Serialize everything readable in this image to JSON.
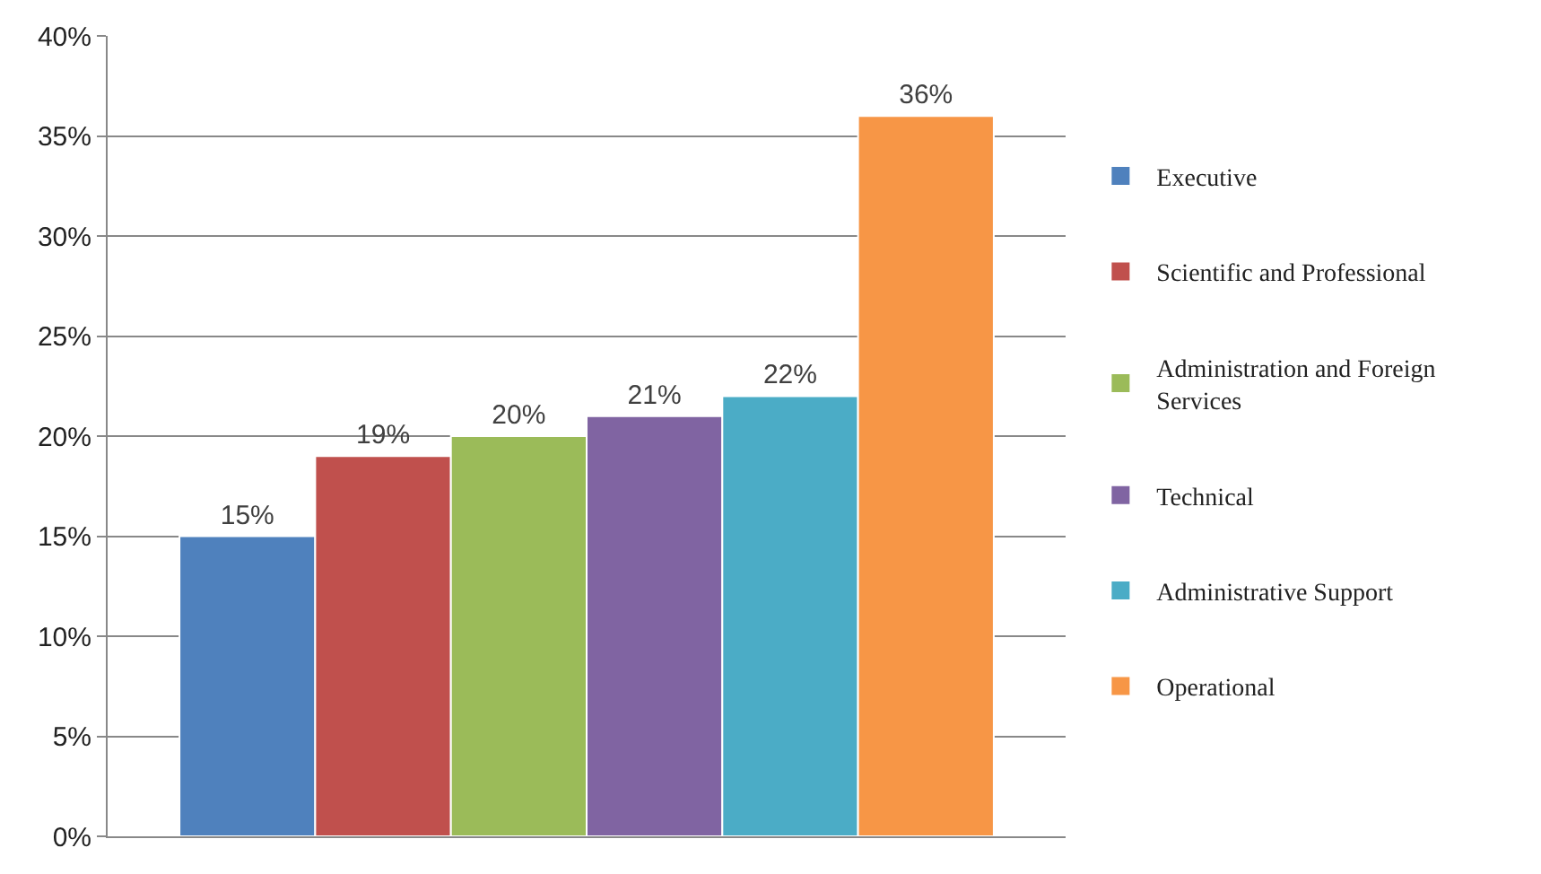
{
  "chart_data": {
    "type": "bar",
    "categories": [
      null
    ],
    "series": [
      {
        "name": "Executive",
        "color": "#4f81bd",
        "values": [
          15
        ],
        "value_labels": [
          "15%"
        ]
      },
      {
        "name": "Scientific and Professional",
        "color": "#c0504d",
        "values": [
          19
        ],
        "value_labels": [
          "19%"
        ]
      },
      {
        "name": "Administration and Foreign Services",
        "color": "#9bbb59",
        "values": [
          20
        ],
        "value_labels": [
          "20%"
        ]
      },
      {
        "name": "Technical",
        "color": "#8064a2",
        "values": [
          21
        ],
        "value_labels": [
          "21%"
        ]
      },
      {
        "name": "Administrative Support",
        "color": "#4bacc6",
        "values": [
          22
        ],
        "value_labels": [
          "22%"
        ]
      },
      {
        "name": "Operational",
        "color": "#f79646",
        "values": [
          36
        ],
        "value_labels": [
          "36%"
        ]
      }
    ],
    "ylim": [
      0,
      40
    ],
    "yticks": [
      {
        "value": 0,
        "label": "0%"
      },
      {
        "value": 5,
        "label": "5%"
      },
      {
        "value": 10,
        "label": "10%"
      },
      {
        "value": 15,
        "label": "15%"
      },
      {
        "value": 20,
        "label": "20%"
      },
      {
        "value": 25,
        "label": "25%"
      },
      {
        "value": 30,
        "label": "30%"
      },
      {
        "value": 35,
        "label": "35%"
      },
      {
        "value": 40,
        "label": "40%"
      }
    ],
    "grid": "y",
    "legend": "right"
  }
}
